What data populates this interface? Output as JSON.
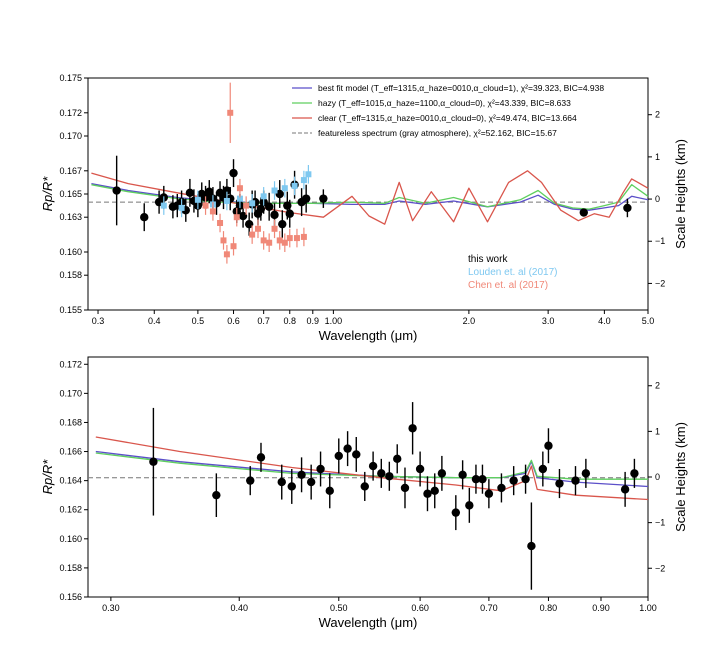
{
  "chart_data": [
    {
      "type": "line",
      "title": "",
      "xlabel": "Wavelength (μm)",
      "ylabel": "Rp/R*",
      "y2label": "Scale Heights (km)",
      "xscale": "log",
      "xlim": [
        0.285,
        5.0
      ],
      "ylim": [
        0.155,
        0.175
      ],
      "y2lim": [
        -2.63,
        2.87
      ],
      "xticks": [
        0.3,
        0.4,
        0.5,
        0.6,
        0.7,
        0.8,
        0.9,
        1.0,
        2.0,
        3.0,
        4.0,
        5.0
      ],
      "xtick_labels": [
        "0.3",
        "0.4",
        "0.5",
        "0.6",
        "0.7",
        "0.8",
        "0.9",
        "1.00",
        "2.0",
        "3.0",
        "4.0",
        "5.0"
      ],
      "yticks": [
        0.155,
        0.158,
        0.16,
        0.163,
        0.165,
        0.167,
        0.17,
        0.172,
        0.175
      ],
      "ytick_labels": [
        "0.155",
        "0.158",
        "0.160",
        "0.163",
        "0.165",
        "0.167",
        "0.170",
        "0.172",
        "0.175"
      ],
      "y2ticks": [
        -2,
        -1,
        0,
        1,
        2
      ],
      "y2tick_labels": [
        "−2",
        "−1",
        "0",
        "1",
        "2"
      ],
      "featureless_level": 0.1643,
      "legend": [
        {
          "label": "best fit model (T_eff=1315,α_haze=0010,α_cloud=1), χ²=39.323, BIC=4.938",
          "color": "#5b4fc9",
          "style": "solid"
        },
        {
          "label": "hazy (T_eff=1015,α_haze=1100,α_cloud=0), χ²=43.339, BIC=8.633",
          "color": "#5fcf5f",
          "style": "solid"
        },
        {
          "label": "clear (T_eff=1315,α_haze=0010,α_cloud=0), χ²=49.474, BIC=13.664",
          "color": "#d9564c",
          "style": "solid"
        },
        {
          "label": "featureless spectrum (gray atmosphere), χ²=52.162, BIC=15.67",
          "color": "#777777",
          "style": "dashed"
        }
      ],
      "annotations": [
        {
          "text": "this work",
          "color": "#000000"
        },
        {
          "text": "Louden et. al (2017)",
          "color": "#7ec8f0"
        },
        {
          "text": "Chen et. al (2017)",
          "color": "#f08878"
        }
      ],
      "series": [
        {
          "name": "best fit model",
          "color": "#5b4fc9",
          "x": [
            0.29,
            0.35,
            0.45,
            0.55,
            0.7,
            0.9,
            1.1,
            1.3,
            1.4,
            1.6,
            1.85,
            2.2,
            2.6,
            2.85,
            3.1,
            3.4,
            3.7,
            4.0,
            4.3,
            4.6,
            5.0
          ],
          "y": [
            0.1659,
            0.1653,
            0.1647,
            0.1644,
            0.1642,
            0.1642,
            0.1641,
            0.1641,
            0.1644,
            0.1641,
            0.1644,
            0.1639,
            0.1643,
            0.1649,
            0.1641,
            0.1637,
            0.1636,
            0.1638,
            0.164,
            0.1648,
            0.1645
          ]
        },
        {
          "name": "hazy",
          "color": "#5fcf5f",
          "x": [
            0.29,
            0.35,
            0.45,
            0.55,
            0.7,
            0.9,
            1.1,
            1.3,
            1.4,
            1.6,
            1.85,
            2.2,
            2.6,
            2.85,
            3.1,
            3.4,
            3.7,
            4.0,
            4.3,
            4.6,
            5.0
          ],
          "y": [
            0.1658,
            0.1652,
            0.1646,
            0.1643,
            0.1642,
            0.1642,
            0.1643,
            0.1642,
            0.1647,
            0.1642,
            0.1647,
            0.1639,
            0.1645,
            0.1653,
            0.1642,
            0.1638,
            0.1637,
            0.164,
            0.1643,
            0.1658,
            0.1648
          ]
        },
        {
          "name": "clear",
          "color": "#d9564c",
          "x": [
            0.29,
            0.35,
            0.45,
            0.55,
            0.65,
            0.8,
            0.95,
            1.1,
            1.2,
            1.3,
            1.4,
            1.5,
            1.65,
            1.85,
            2.0,
            2.2,
            2.45,
            2.7,
            2.9,
            3.2,
            3.5,
            3.8,
            4.1,
            4.4,
            4.6,
            5.0
          ],
          "y": [
            0.1668,
            0.1659,
            0.1651,
            0.1645,
            0.164,
            0.1634,
            0.163,
            0.1648,
            0.1631,
            0.1624,
            0.166,
            0.1627,
            0.1652,
            0.1626,
            0.1655,
            0.1626,
            0.166,
            0.167,
            0.166,
            0.1636,
            0.1627,
            0.1633,
            0.163,
            0.1651,
            0.1663,
            0.1655
          ]
        },
        {
          "name": "this work",
          "kind": "points",
          "color": "#000000",
          "x": [
            0.33,
            0.38,
            0.41,
            0.42,
            0.44,
            0.45,
            0.46,
            0.47,
            0.48,
            0.49,
            0.5,
            0.51,
            0.52,
            0.53,
            0.54,
            0.55,
            0.56,
            0.57,
            0.58,
            0.59,
            0.6,
            0.61,
            0.62,
            0.63,
            0.65,
            0.66,
            0.67,
            0.68,
            0.69,
            0.7,
            0.72,
            0.74,
            0.76,
            0.77,
            0.79,
            0.8,
            0.82,
            0.85,
            0.87,
            0.95,
            3.6,
            4.5
          ],
          "y": [
            0.1653,
            0.163,
            0.1643,
            0.1647,
            0.1639,
            0.164,
            0.1643,
            0.1636,
            0.1651,
            0.1644,
            0.164,
            0.165,
            0.1647,
            0.1652,
            0.1646,
            0.1642,
            0.1651,
            0.1647,
            0.1653,
            0.1646,
            0.1668,
            0.1635,
            0.164,
            0.1631,
            0.1624,
            0.1641,
            0.1643,
            0.1633,
            0.1637,
            0.1643,
            0.1639,
            0.1632,
            0.165,
            0.1624,
            0.164,
            0.1633,
            0.1658,
            0.1643,
            0.1646,
            0.1646,
            0.1634,
            0.1638
          ],
          "yerr": [
            0.003,
            0.0012,
            0.001,
            0.001,
            0.001,
            0.001,
            0.001,
            0.001,
            0.0012,
            0.001,
            0.001,
            0.001,
            0.001,
            0.001,
            0.001,
            0.001,
            0.001,
            0.001,
            0.001,
            0.001,
            0.0012,
            0.001,
            0.001,
            0.001,
            0.001,
            0.0012,
            0.001,
            0.001,
            0.001,
            0.001,
            0.0012,
            0.001,
            0.0012,
            0.0012,
            0.0012,
            0.0012,
            0.0012,
            0.0012,
            0.0012,
            0.0008,
            0.0003,
            0.0008
          ]
        },
        {
          "name": "Louden et. al (2017)",
          "kind": "points",
          "color": "#7ec8f0",
          "x": [
            0.42,
            0.46,
            0.5,
            0.54,
            0.58,
            0.62,
            0.66,
            0.7,
            0.74,
            0.78,
            0.82,
            0.86,
            0.88
          ],
          "y": [
            0.164,
            0.1638,
            0.1645,
            0.1641,
            0.1644,
            0.1646,
            0.1642,
            0.1648,
            0.1653,
            0.1655,
            0.1657,
            0.1662,
            0.1667
          ],
          "yerr": [
            0.0008,
            0.0008,
            0.0008,
            0.0008,
            0.0008,
            0.0008,
            0.0008,
            0.0008,
            0.0008,
            0.0008,
            0.0008,
            0.0008,
            0.0008
          ]
        },
        {
          "name": "Chen et. al (2017)",
          "kind": "points",
          "color": "#f08878",
          "x": [
            0.52,
            0.54,
            0.56,
            0.57,
            0.58,
            0.59,
            0.6,
            0.61,
            0.62,
            0.64,
            0.66,
            0.68,
            0.7,
            0.72,
            0.74,
            0.76,
            0.78,
            0.8,
            0.83,
            0.86
          ],
          "y": [
            0.164,
            0.1635,
            0.1625,
            0.161,
            0.1598,
            0.172,
            0.1605,
            0.163,
            0.1655,
            0.164,
            0.1615,
            0.162,
            0.161,
            0.1608,
            0.162,
            0.161,
            0.1608,
            0.1612,
            0.1612,
            0.1613
          ],
          "yerr": [
            0.0008,
            0.0008,
            0.0008,
            0.0008,
            0.0008,
            0.0026,
            0.0008,
            0.0008,
            0.0008,
            0.0008,
            0.0008,
            0.0008,
            0.0008,
            0.0008,
            0.0008,
            0.0008,
            0.0008,
            0.0008,
            0.0008,
            0.0008
          ]
        }
      ]
    },
    {
      "type": "line",
      "title": "",
      "xlabel": "Wavelength (μm)",
      "ylabel": "Rp/R*",
      "y2label": "Scale Heights (km)",
      "xscale": "log",
      "xlim": [
        0.285,
        1.0
      ],
      "ylim": [
        0.156,
        0.1725
      ],
      "y2lim": [
        -2.63,
        2.63
      ],
      "xticks": [
        0.3,
        0.4,
        0.5,
        0.6,
        0.7,
        0.8,
        0.9,
        1.0
      ],
      "xtick_labels": [
        "0.30",
        "0.40",
        "0.50",
        "0.60",
        "0.70",
        "0.80",
        "0.90",
        "1.00"
      ],
      "yticks": [
        0.156,
        0.158,
        0.16,
        0.162,
        0.164,
        0.166,
        0.168,
        0.17,
        0.172
      ],
      "ytick_labels": [
        "0.156",
        "0.158",
        "0.160",
        "0.162",
        "0.164",
        "0.166",
        "0.168",
        "0.170",
        "0.172"
      ],
      "y2ticks": [
        -2,
        -1,
        0,
        1,
        2
      ],
      "y2tick_labels": [
        "−2",
        "−1",
        "0",
        "1",
        "2"
      ],
      "featureless_level": 0.1642,
      "series": [
        {
          "name": "best fit model",
          "color": "#5b4fc9",
          "x": [
            0.29,
            0.35,
            0.45,
            0.55,
            0.65,
            0.72,
            0.76,
            0.77,
            0.78,
            0.85,
            1.0
          ],
          "y": [
            0.166,
            0.1653,
            0.1646,
            0.1643,
            0.1642,
            0.1642,
            0.1645,
            0.1653,
            0.1642,
            0.1639,
            0.1636
          ]
        },
        {
          "name": "hazy",
          "color": "#5fcf5f",
          "x": [
            0.29,
            0.35,
            0.45,
            0.55,
            0.65,
            0.72,
            0.76,
            0.77,
            0.78,
            0.85,
            1.0
          ],
          "y": [
            0.1659,
            0.1652,
            0.1645,
            0.1643,
            0.1642,
            0.1642,
            0.1646,
            0.1654,
            0.1643,
            0.1641,
            0.1641
          ]
        },
        {
          "name": "clear",
          "color": "#d9564c",
          "x": [
            0.29,
            0.35,
            0.45,
            0.55,
            0.65,
            0.72,
            0.76,
            0.77,
            0.78,
            0.85,
            1.0
          ],
          "y": [
            0.167,
            0.166,
            0.1649,
            0.1642,
            0.1637,
            0.1633,
            0.164,
            0.165,
            0.1634,
            0.163,
            0.1627
          ]
        },
        {
          "name": "this work",
          "kind": "points",
          "color": "#000000",
          "x": [
            0.33,
            0.38,
            0.41,
            0.42,
            0.44,
            0.45,
            0.46,
            0.47,
            0.48,
            0.49,
            0.5,
            0.51,
            0.52,
            0.53,
            0.54,
            0.55,
            0.56,
            0.57,
            0.58,
            0.59,
            0.6,
            0.61,
            0.62,
            0.63,
            0.65,
            0.66,
            0.67,
            0.68,
            0.69,
            0.7,
            0.72,
            0.74,
            0.76,
            0.77,
            0.79,
            0.8,
            0.82,
            0.85,
            0.87,
            0.95,
            0.97
          ],
          "y": [
            0.1653,
            0.163,
            0.164,
            0.1656,
            0.1639,
            0.1636,
            0.1644,
            0.1639,
            0.1648,
            0.1633,
            0.1657,
            0.1662,
            0.1658,
            0.1636,
            0.165,
            0.1645,
            0.1643,
            0.1655,
            0.1635,
            0.1676,
            0.1648,
            0.1631,
            0.1633,
            0.1645,
            0.1618,
            0.1644,
            0.1623,
            0.1641,
            0.1641,
            0.1631,
            0.1635,
            0.164,
            0.1641,
            0.1595,
            0.1648,
            0.1664,
            0.1638,
            0.164,
            0.1645,
            0.1634,
            0.1645
          ],
          "yerr": [
            0.0037,
            0.0015,
            0.001,
            0.001,
            0.0012,
            0.0012,
            0.0012,
            0.0012,
            0.0012,
            0.0012,
            0.0012,
            0.0012,
            0.0012,
            0.001,
            0.001,
            0.001,
            0.001,
            0.001,
            0.0014,
            0.0018,
            0.0012,
            0.0012,
            0.0012,
            0.0012,
            0.0012,
            0.001,
            0.0012,
            0.001,
            0.001,
            0.001,
            0.001,
            0.001,
            0.001,
            0.003,
            0.0012,
            0.0012,
            0.001,
            0.001,
            0.001,
            0.0012,
            0.001
          ]
        }
      ]
    }
  ]
}
